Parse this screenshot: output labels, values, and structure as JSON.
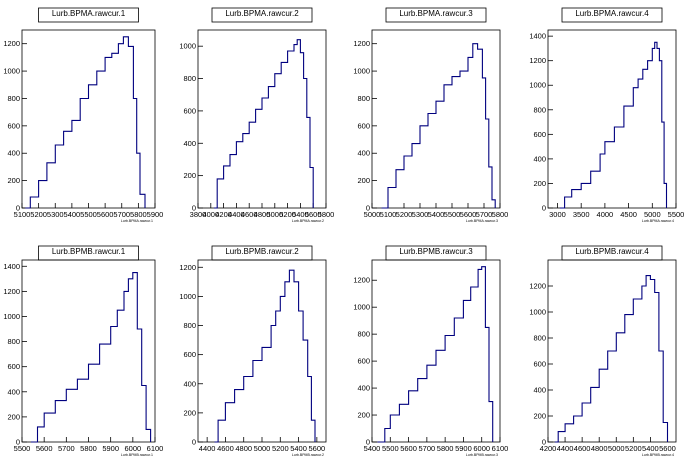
{
  "chart_data": [
    {
      "type": "line",
      "title": "Lurb.BPMA.rawcur.1",
      "xlabel": "Lurb.BPMA.rawcur.1",
      "xlim": [
        5100,
        5900
      ],
      "ylim": [
        0,
        1300
      ],
      "xticks": [
        5100,
        5200,
        5300,
        5400,
        5500,
        5600,
        5700,
        5800,
        5900
      ],
      "xtick_labels": [
        "5100",
        "5200",
        "5300",
        "5400",
        "5500",
        "5600",
        "5700",
        "5800",
        "5900"
      ],
      "yticks": [
        0,
        200,
        400,
        600,
        800,
        1000,
        1200
      ],
      "x": [
        5120,
        5150,
        5200,
        5250,
        5300,
        5350,
        5400,
        5450,
        5500,
        5550,
        5600,
        5640,
        5680,
        5710,
        5740,
        5770,
        5790,
        5810,
        5840
      ],
      "y": [
        0,
        80,
        200,
        330,
        460,
        560,
        640,
        800,
        900,
        1000,
        1100,
        1130,
        1200,
        1250,
        1180,
        800,
        400,
        100,
        0
      ]
    },
    {
      "type": "line",
      "title": "Lurb.BPMA.rawcur.2",
      "xlabel": "Lurb.BPMA.rawcur.2",
      "xlim": [
        3800,
        5800
      ],
      "ylim": [
        0,
        1100
      ],
      "xticks": [
        3800,
        4000,
        4200,
        4400,
        4600,
        4800,
        5000,
        5200,
        5400,
        5600,
        5800
      ],
      "xtick_labels": [
        "3800",
        "4000",
        "4200",
        "4400",
        "4600",
        "4800",
        "5000",
        "5200",
        "5400",
        "5600",
        "5800"
      ],
      "yticks": [
        0,
        200,
        400,
        600,
        800,
        1000
      ],
      "x": [
        4050,
        4100,
        4200,
        4300,
        4400,
        4500,
        4600,
        4700,
        4800,
        4900,
        5000,
        5100,
        5200,
        5300,
        5350,
        5400,
        5450,
        5500,
        5550,
        5600
      ],
      "y": [
        0,
        180,
        260,
        330,
        410,
        460,
        530,
        610,
        680,
        750,
        830,
        900,
        970,
        1010,
        1040,
        960,
        800,
        560,
        250,
        0
      ]
    },
    {
      "type": "line",
      "title": "Lurb.BPMA.rawcur.3",
      "xlabel": "Lurb.BPMA.rawcur.3",
      "xlim": [
        5000,
        5800
      ],
      "ylim": [
        0,
        1300
      ],
      "xticks": [
        5000,
        5100,
        5200,
        5300,
        5400,
        5500,
        5600,
        5700,
        5800
      ],
      "xtick_labels": [
        "5000",
        "5100",
        "5200",
        "5300",
        "5400",
        "5500",
        "5600",
        "5700",
        "5800"
      ],
      "yticks": [
        0,
        200,
        400,
        600,
        800,
        1000,
        1200
      ],
      "x": [
        5060,
        5100,
        5150,
        5200,
        5250,
        5300,
        5350,
        5400,
        5450,
        5500,
        5550,
        5600,
        5630,
        5660,
        5690,
        5710,
        5730,
        5750,
        5770
      ],
      "y": [
        0,
        150,
        280,
        380,
        470,
        600,
        690,
        780,
        900,
        960,
        1000,
        1100,
        1200,
        1160,
        950,
        650,
        300,
        60,
        0
      ]
    },
    {
      "type": "line",
      "title": "Lurb.BPMA.rawcur.4",
      "xlabel": "Lurb.BPMA.rawcur.4",
      "xlim": [
        2800,
        5500
      ],
      "ylim": [
        0,
        1450
      ],
      "xticks": [
        3000,
        3500,
        4000,
        4500,
        5000,
        5500
      ],
      "xtick_labels": [
        "3000",
        "3500",
        "4000",
        "4500",
        "5000",
        "5500"
      ],
      "yticks": [
        0,
        200,
        400,
        600,
        800,
        1000,
        1200,
        1400
      ],
      "x": [
        3050,
        3150,
        3300,
        3500,
        3700,
        3900,
        4000,
        4200,
        4400,
        4600,
        4700,
        4800,
        4900,
        5000,
        5050,
        5100,
        5150,
        5200,
        5250,
        5300
      ],
      "y": [
        0,
        90,
        150,
        200,
        300,
        440,
        540,
        660,
        830,
        980,
        1050,
        1130,
        1200,
        1300,
        1350,
        1300,
        1200,
        700,
        200,
        0
      ]
    },
    {
      "type": "line",
      "title": "Lurb.BPMB.rawcur.1",
      "xlabel": "Lurb.BPMB.rawcur.1",
      "xlim": [
        5500,
        6100
      ],
      "ylim": [
        0,
        1450
      ],
      "xticks": [
        5500,
        5600,
        5700,
        5800,
        5900,
        6000,
        6100
      ],
      "xtick_labels": [
        "5500",
        "5600",
        "5700",
        "5800",
        "5900",
        "6000",
        "6100"
      ],
      "yticks": [
        0,
        200,
        400,
        600,
        800,
        1000,
        1200,
        1400
      ],
      "x": [
        5540,
        5570,
        5600,
        5650,
        5700,
        5750,
        5800,
        5850,
        5900,
        5930,
        5960,
        5980,
        6000,
        6020,
        6040,
        6060,
        6080
      ],
      "y": [
        0,
        120,
        230,
        330,
        420,
        500,
        620,
        780,
        920,
        1050,
        1200,
        1300,
        1350,
        900,
        450,
        100,
        0
      ]
    },
    {
      "type": "line",
      "title": "Lurb.BPMB.rawcur.2",
      "xlabel": "Lurb.BPMB.rawcur.2",
      "xlim": [
        4300,
        5700
      ],
      "ylim": [
        0,
        1250
      ],
      "xticks": [
        4400,
        4600,
        4800,
        5000,
        5200,
        5400,
        5600
      ],
      "xtick_labels": [
        "4400",
        "4600",
        "4800",
        "5000",
        "5200",
        "5400",
        "5600"
      ],
      "yticks": [
        0,
        200,
        400,
        600,
        800,
        1000,
        1200
      ],
      "x": [
        4480,
        4520,
        4600,
        4700,
        4800,
        4900,
        5000,
        5100,
        5150,
        5200,
        5250,
        5300,
        5350,
        5400,
        5450,
        5500,
        5540,
        5580
      ],
      "y": [
        0,
        150,
        270,
        360,
        450,
        560,
        650,
        800,
        900,
        1000,
        1100,
        1180,
        1100,
        900,
        700,
        450,
        150,
        0
      ]
    },
    {
      "type": "line",
      "title": "Lurb.BPMB.rawcur.3",
      "xlabel": "Lurb.BPMB.rawcur.3",
      "xlim": [
        5400,
        6100
      ],
      "ylim": [
        0,
        1350
      ],
      "xticks": [
        5400,
        5500,
        5600,
        5700,
        5800,
        5900,
        6000,
        6100
      ],
      "xtick_labels": [
        "5400",
        "5500",
        "5600",
        "5700",
        "5800",
        "5900",
        "6000",
        "6100"
      ],
      "yticks": [
        0,
        200,
        400,
        600,
        800,
        1000,
        1200
      ],
      "x": [
        5430,
        5470,
        5500,
        5550,
        5600,
        5650,
        5700,
        5750,
        5800,
        5850,
        5900,
        5940,
        5980,
        6000,
        6020,
        6040,
        6060
      ],
      "y": [
        0,
        100,
        200,
        280,
        380,
        470,
        570,
        680,
        790,
        920,
        1050,
        1150,
        1280,
        1300,
        850,
        300,
        0
      ]
    },
    {
      "type": "line",
      "title": "Lurb.BPMB.rawcur.4",
      "xlabel": "Lurb.BPMB.rawcur.4",
      "xlim": [
        4200,
        5700
      ],
      "ylim": [
        0,
        1400
      ],
      "xticks": [
        4200,
        4400,
        4600,
        4800,
        5000,
        5200,
        5400,
        5600
      ],
      "xtick_labels": [
        "4200",
        "4400",
        "4600",
        "4800",
        "5000",
        "5200",
        "5400",
        "5600"
      ],
      "yticks": [
        0,
        200,
        400,
        600,
        800,
        1000,
        1200
      ],
      "x": [
        4280,
        4320,
        4400,
        4500,
        4600,
        4700,
        4800,
        4900,
        5000,
        5100,
        5200,
        5300,
        5350,
        5400,
        5450,
        5500,
        5550,
        5600
      ],
      "y": [
        0,
        80,
        140,
        200,
        300,
        420,
        560,
        700,
        840,
        980,
        1100,
        1200,
        1280,
        1250,
        1150,
        700,
        150,
        0
      ]
    }
  ]
}
